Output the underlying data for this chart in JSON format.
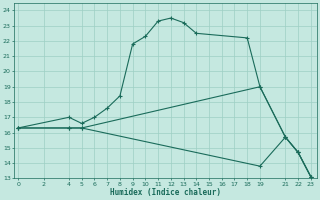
{
  "xlabel": "Humidex (Indice chaleur)",
  "bg_color": "#c5e8e0",
  "grid_color": "#9ecfc4",
  "line_color": "#1a6b5a",
  "line1_x": [
    0,
    4,
    5,
    6,
    7,
    8,
    9,
    10,
    11,
    12,
    13,
    14,
    18,
    19,
    21,
    22,
    23
  ],
  "line1_y": [
    16.3,
    17.0,
    16.6,
    17.0,
    17.6,
    18.4,
    21.8,
    22.3,
    23.3,
    23.5,
    23.2,
    22.5,
    22.2,
    19.0,
    15.7,
    14.7,
    13.1
  ],
  "line2_x": [
    0,
    4,
    5,
    19,
    21,
    22,
    23
  ],
  "line2_y": [
    16.3,
    16.3,
    16.3,
    19.0,
    15.7,
    14.7,
    13.1
  ],
  "line3_x": [
    0,
    4,
    5,
    19,
    21,
    22,
    23
  ],
  "line3_y": [
    16.3,
    16.3,
    16.3,
    13.8,
    15.7,
    14.7,
    13.1
  ],
  "xlim": [
    -0.3,
    23.5
  ],
  "ylim": [
    13,
    24.5
  ],
  "yticks": [
    13,
    14,
    15,
    16,
    17,
    18,
    19,
    20,
    21,
    22,
    23,
    24
  ],
  "xticks": [
    0,
    2,
    4,
    5,
    6,
    7,
    8,
    9,
    10,
    11,
    12,
    13,
    14,
    15,
    16,
    17,
    18,
    19,
    21,
    22,
    23
  ]
}
